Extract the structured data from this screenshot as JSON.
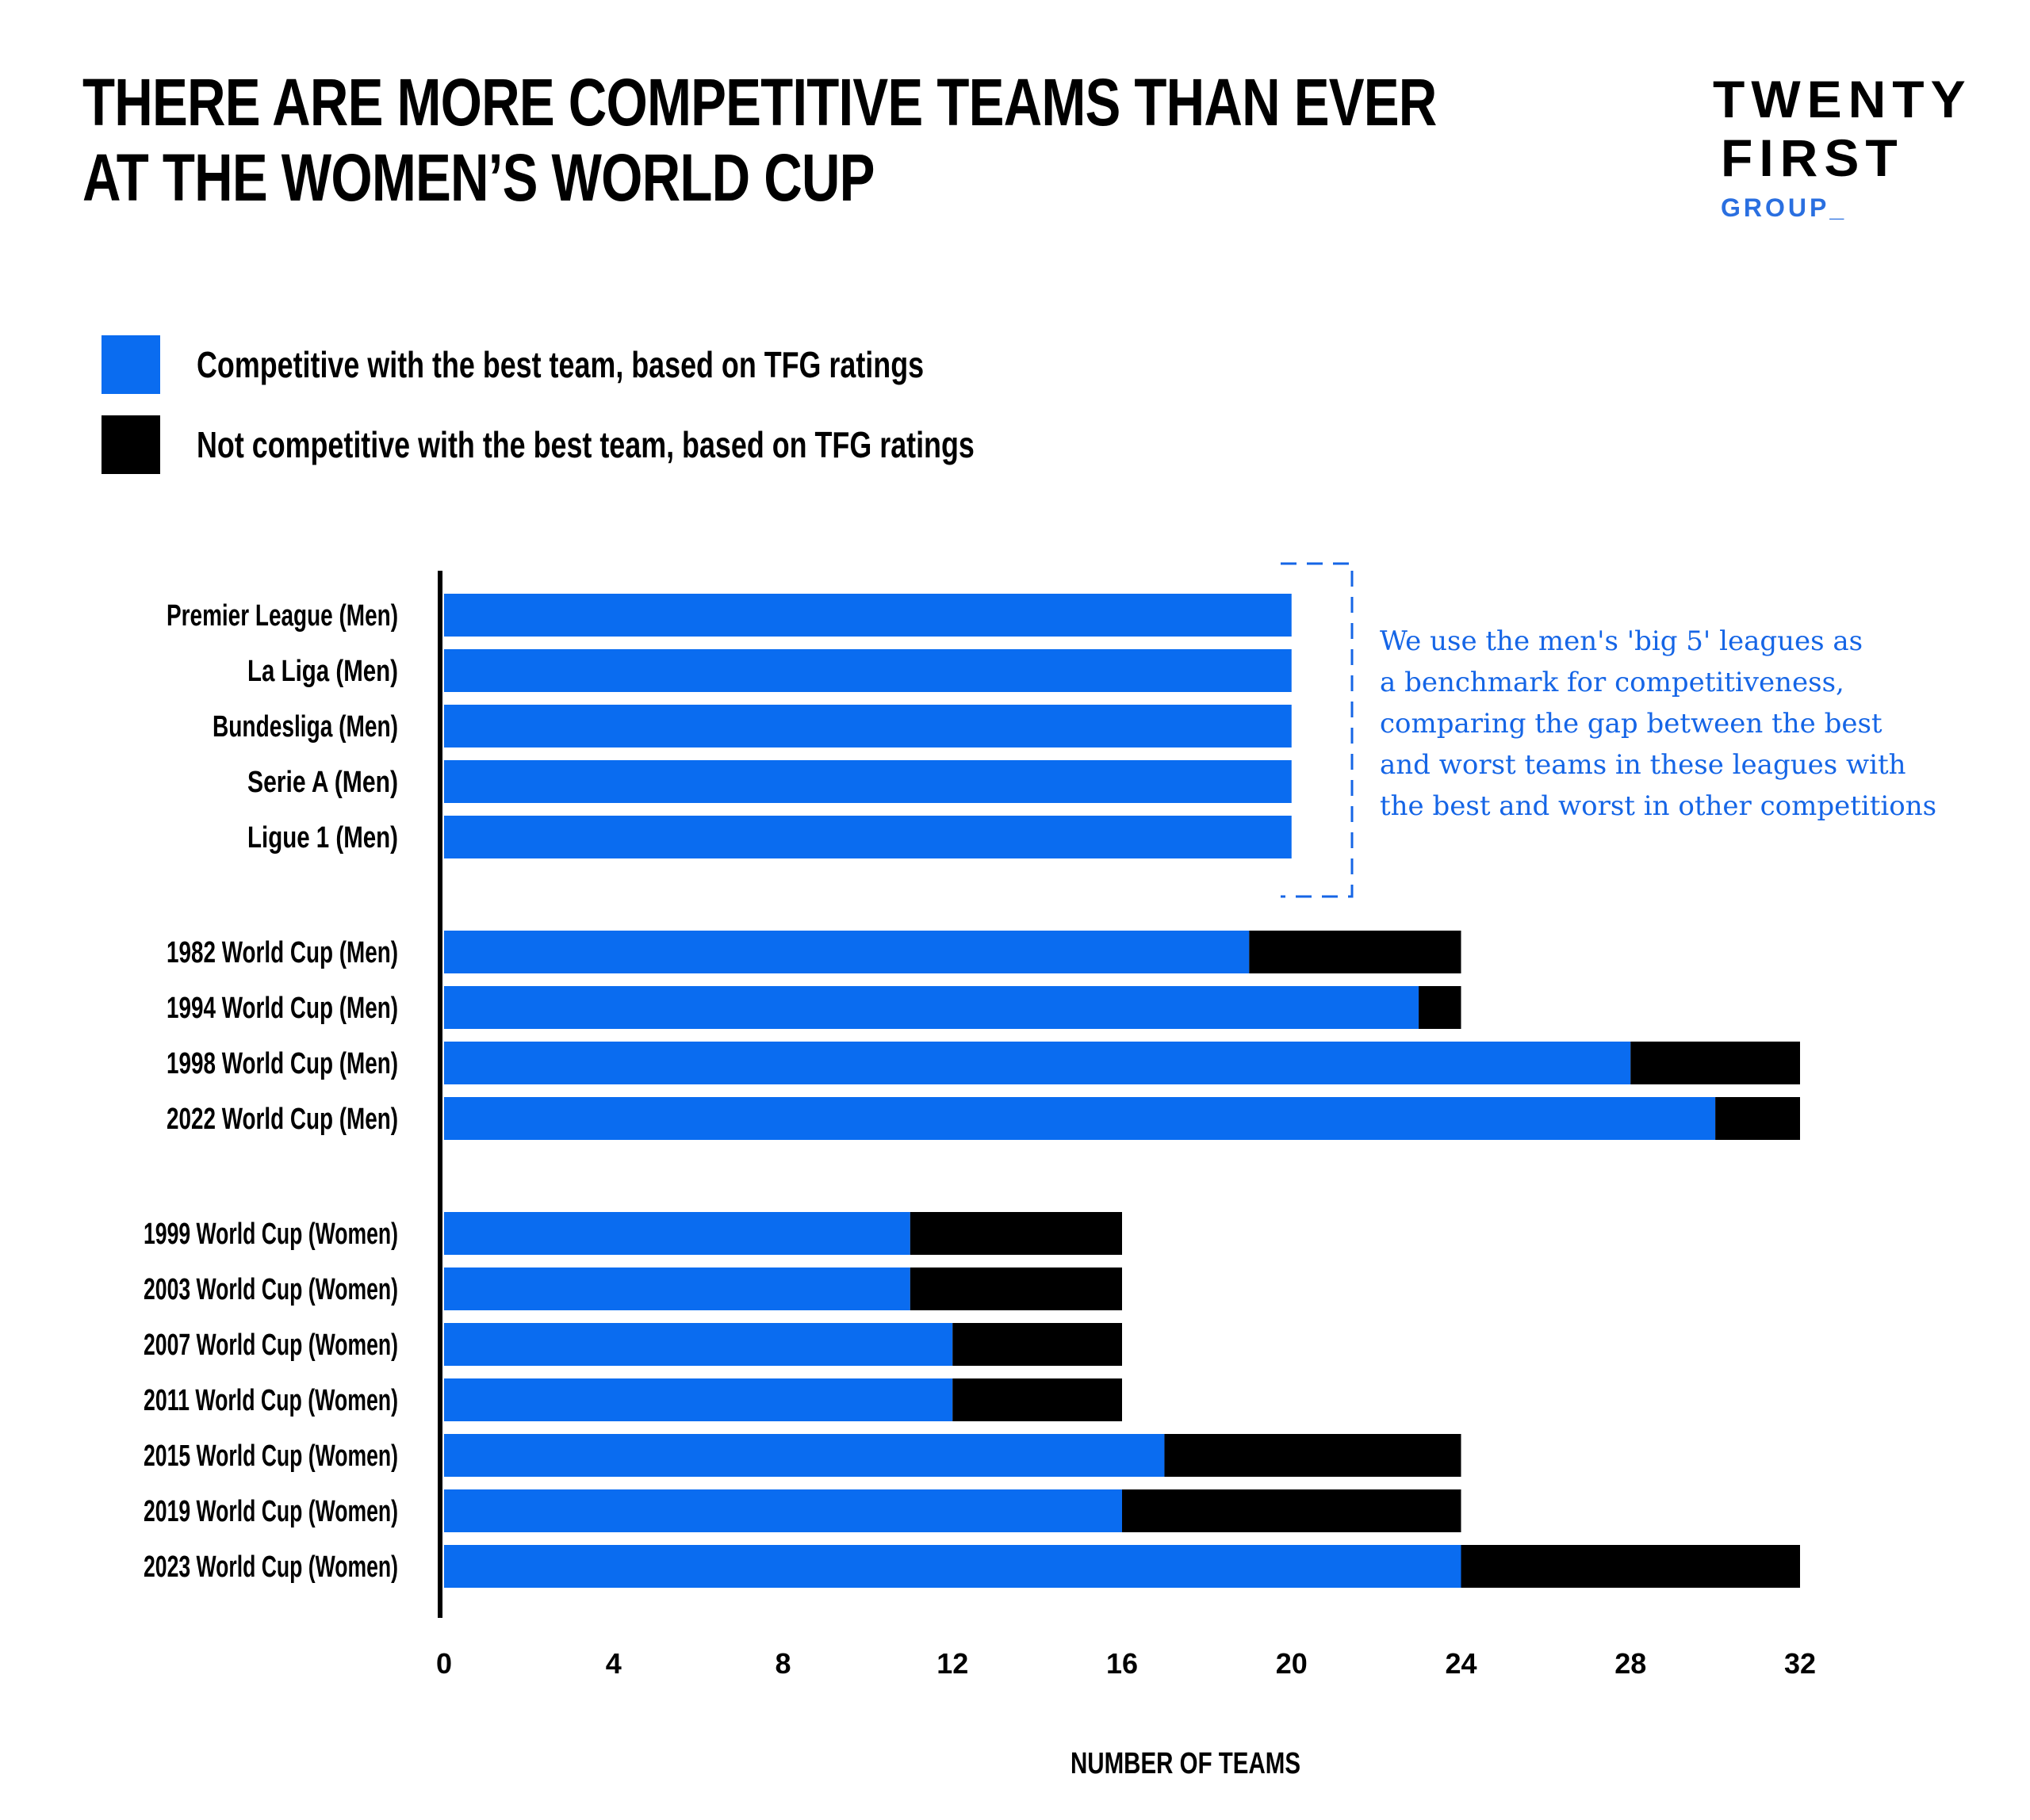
{
  "title_lines": [
    "THERE ARE MORE COMPETITIVE TEAMS THAN EVER",
    "AT THE WOMEN’S WORLD CUP"
  ],
  "logo": {
    "line1": "TWENTY",
    "line2": "FIRST",
    "line3": "GROUP_"
  },
  "legend": [
    {
      "label": "Competitive with the best team, based on TFG ratings",
      "color": "#0a6cf0"
    },
    {
      "label": "Not competitive with the best team, based on TFG ratings",
      "color": "#000000"
    }
  ],
  "annotation_lines": [
    "We use the men's 'big 5' leagues as",
    "a benchmark for competitiveness,",
    "comparing the gap between the best",
    "and worst teams in these leagues with",
    "the best and worst in other competitions"
  ],
  "chart_data": {
    "type": "bar",
    "orientation": "horizontal",
    "stacked": true,
    "xlabel": "NUMBER OF TEAMS",
    "xlim": [
      0,
      32
    ],
    "xticks": [
      "0",
      "4",
      "8",
      "12",
      "16",
      "20",
      "24",
      "28",
      "32"
    ],
    "grid": false,
    "legend_position": "top-left",
    "categories": [
      "Premier League (Men)",
      "La Liga (Men)",
      "Bundesliga (Men)",
      "Serie A (Men)",
      "Ligue 1 (Men)",
      "1982 World Cup (Men)",
      "1994 World Cup (Men)",
      "1998 World Cup (Men)",
      "2022 World Cup (Men)",
      "1999 World Cup (Women)",
      "2003 World Cup (Women)",
      "2007 World Cup (Women)",
      "2011 World Cup (Women)",
      "2015 World Cup (Women)",
      "2019 World Cup (Women)",
      "2023 World Cup (Women)"
    ],
    "groups": [
      0,
      0,
      0,
      0,
      0,
      1,
      1,
      1,
      1,
      2,
      2,
      2,
      2,
      2,
      2,
      2
    ],
    "series": [
      {
        "name": "Competitive with the best team, based on TFG ratings",
        "color": "#0a6cf0",
        "values": [
          20,
          20,
          20,
          20,
          20,
          19,
          23,
          28,
          30,
          11,
          11,
          12,
          12,
          17,
          16,
          24
        ]
      },
      {
        "name": "Not competitive with the best team, based on TFG ratings",
        "color": "#000000",
        "values": [
          0,
          0,
          0,
          0,
          0,
          5,
          1,
          4,
          2,
          5,
          5,
          4,
          4,
          7,
          8,
          8
        ]
      }
    ]
  }
}
